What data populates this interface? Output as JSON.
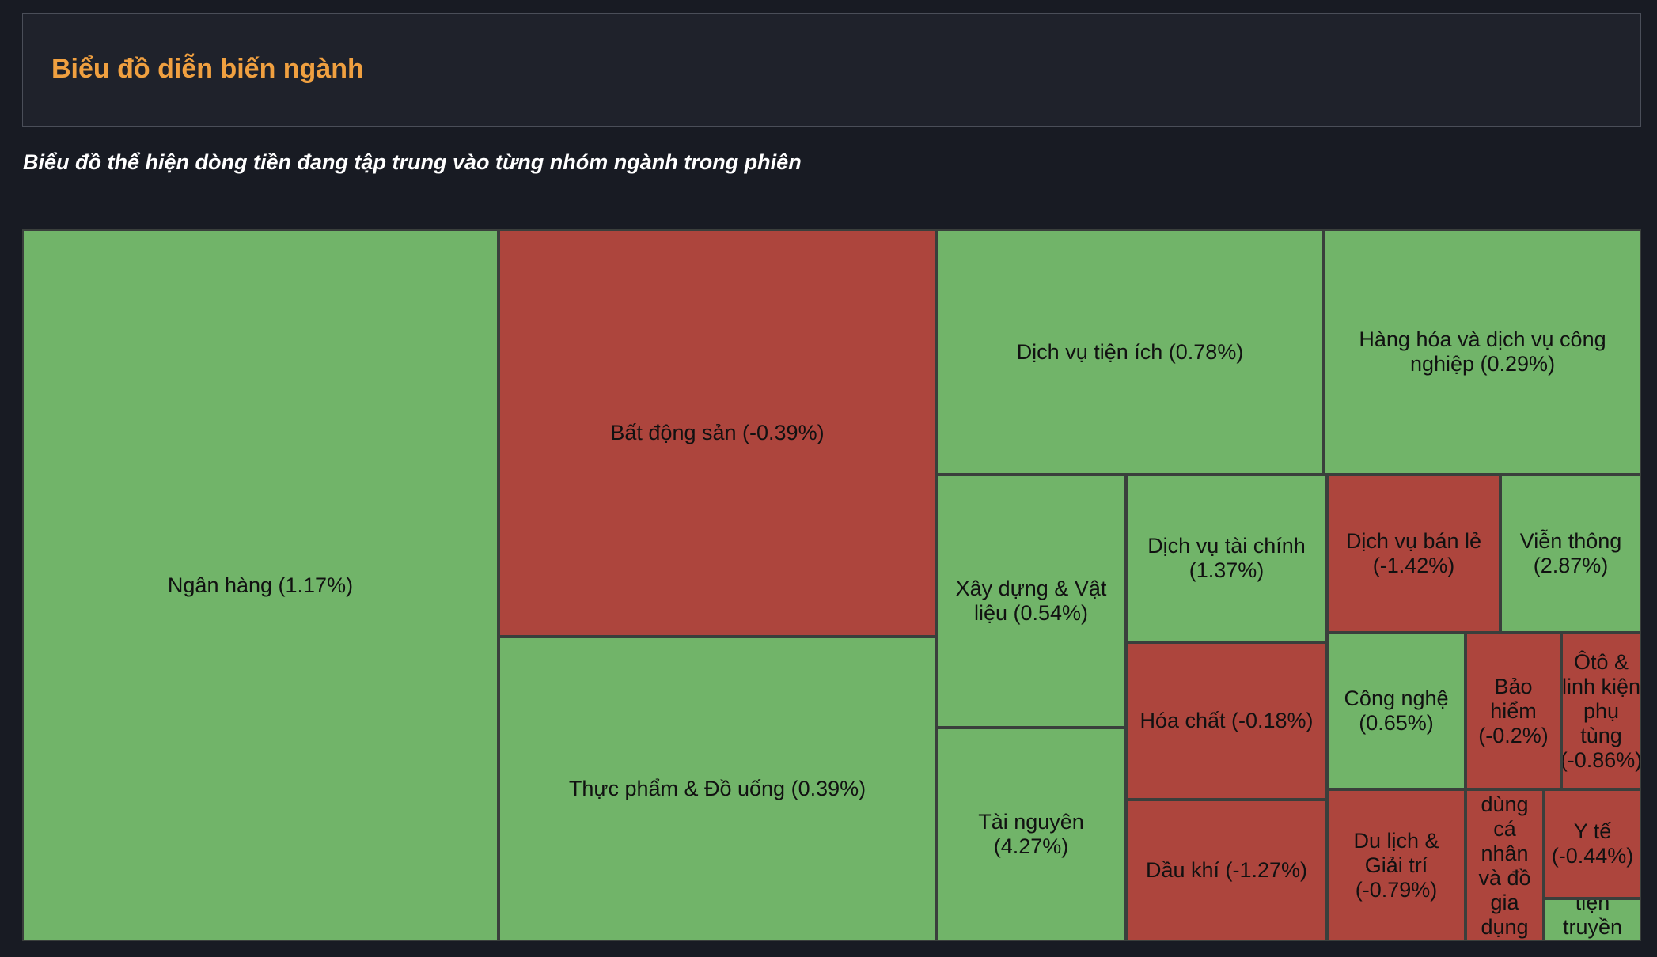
{
  "header": {
    "title": "Biểu đồ diễn biến ngành"
  },
  "subtitle": "Biểu đồ thể hiện dòng tiền đang tập trung vào từng nhóm ngành trong phiên",
  "colors": {
    "positive": "#71b469",
    "negative": "#ad453d",
    "title": "#f0a040",
    "background": "#181b23"
  },
  "chart_data": {
    "type": "treemap",
    "title": "Biểu đồ diễn biến ngành",
    "subtitle": "Biểu đồ thể hiện dòng tiền đang tập trung vào từng nhóm ngành trong phiên",
    "items": [
      {
        "name": "Ngân hàng",
        "change_pct": 1.17,
        "label": "Ngân hàng (1.17%)"
      },
      {
        "name": "Bất động sản",
        "change_pct": -0.39,
        "label": "Bất động sản (-0.39%)"
      },
      {
        "name": "Thực phẩm & Đồ uống",
        "change_pct": 0.39,
        "label": "Thực phẩm & Đồ uống (0.39%)"
      },
      {
        "name": "Dịch vụ tiện ích",
        "change_pct": 0.78,
        "label": "Dịch vụ tiện ích (0.78%)"
      },
      {
        "name": "Hàng hóa và dịch vụ công nghiệp",
        "change_pct": 0.29,
        "label": "Hàng hóa và dịch vụ công nghiệp (0.29%)"
      },
      {
        "name": "Xây dựng & Vật liệu",
        "change_pct": 0.54,
        "label": "Xây dựng & Vật liệu (0.54%)"
      },
      {
        "name": "Tài nguyên",
        "change_pct": 4.27,
        "label": "Tài nguyên (4.27%)"
      },
      {
        "name": "Dịch vụ tài chính",
        "change_pct": 1.37,
        "label": "Dịch vụ tài chính (1.37%)"
      },
      {
        "name": "Hóa chất",
        "change_pct": -0.18,
        "label": "Hóa chất (-0.18%)"
      },
      {
        "name": "Dầu khí",
        "change_pct": -1.27,
        "label": "Dầu khí (-1.27%)"
      },
      {
        "name": "Dịch vụ bán lẻ",
        "change_pct": -1.42,
        "label": "Dịch vụ bán lẻ (-1.42%)"
      },
      {
        "name": "Viễn thông",
        "change_pct": 2.87,
        "label": "Viễn thông (2.87%)"
      },
      {
        "name": "Công nghệ",
        "change_pct": 0.65,
        "label": "Công nghệ (0.65%)"
      },
      {
        "name": "Bảo hiểm",
        "change_pct": -0.2,
        "label": "Bảo hiểm (-0.2%)"
      },
      {
        "name": "Ôtô & linh kiện phụ tùng",
        "change_pct": -0.86,
        "label": "Ôtô & linh kiện phụ tùng (-0.86%)"
      },
      {
        "name": "Du lịch & Giải trí",
        "change_pct": -0.79,
        "label": "Du lịch & Giải trí (-0.79%)"
      },
      {
        "name": "dùng cá nhân và đồ gia dụng",
        "change_pct": null,
        "label": "dùng cá nhân và đồ gia dụng"
      },
      {
        "name": "Y tế",
        "change_pct": -0.44,
        "label": "Y tế (-0.44%)"
      },
      {
        "name": "tiện truyền thông",
        "change_pct": null,
        "label": "tiện truyền thông"
      }
    ]
  }
}
